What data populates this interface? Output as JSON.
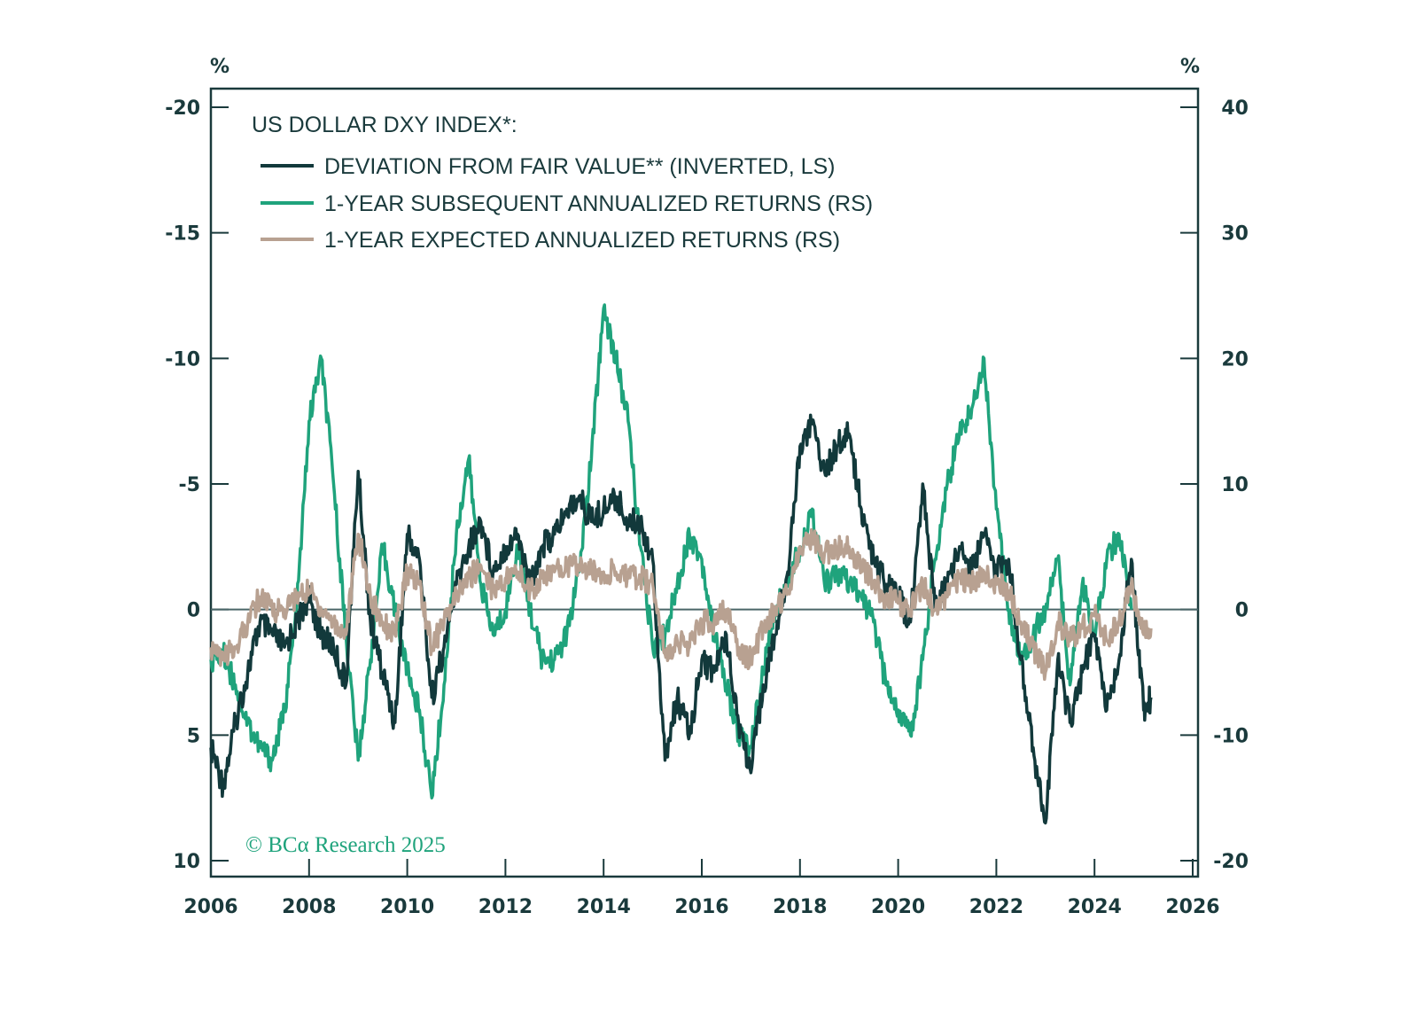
{
  "chart_data": {
    "type": "line",
    "title": "US DOLLAR DXY INDEX*:",
    "left_axis": {
      "unit_label": "%",
      "range": [
        -20,
        10
      ],
      "inverted": true,
      "ticks": [
        -20,
        -15,
        -10,
        -5,
        0,
        5,
        10
      ]
    },
    "right_axis": {
      "unit_label": "%",
      "range": [
        -20,
        40
      ],
      "ticks": [
        40,
        30,
        20,
        10,
        0,
        -10,
        -20
      ]
    },
    "x_axis": {
      "range": [
        2006,
        2026
      ],
      "ticks": [
        2006,
        2008,
        2010,
        2012,
        2014,
        2016,
        2018,
        2020,
        2022,
        2024,
        2026
      ]
    },
    "zero_line": true,
    "legend_position": "top-left",
    "copyright": "© BCα Research 2025",
    "series": [
      {
        "name": "DEVIATION FROM FAIR VALUE** (INVERTED, LS)",
        "axis": "left",
        "color": "#12393b",
        "x": [
          2006.0,
          2006.25,
          2006.5,
          2006.75,
          2007.0,
          2007.25,
          2007.5,
          2007.75,
          2008.0,
          2008.25,
          2008.5,
          2008.75,
          2009.0,
          2009.25,
          2009.5,
          2009.75,
          2010.0,
          2010.25,
          2010.5,
          2010.75,
          2011.0,
          2011.25,
          2011.5,
          2011.75,
          2012.0,
          2012.25,
          2012.5,
          2012.75,
          2013.0,
          2013.25,
          2013.5,
          2013.75,
          2014.0,
          2014.25,
          2014.5,
          2014.75,
          2015.0,
          2015.25,
          2015.5,
          2015.75,
          2016.0,
          2016.25,
          2016.5,
          2016.75,
          2017.0,
          2017.25,
          2017.5,
          2017.75,
          2018.0,
          2018.25,
          2018.5,
          2018.75,
          2019.0,
          2019.25,
          2019.5,
          2019.75,
          2020.0,
          2020.25,
          2020.5,
          2020.75,
          2021.0,
          2021.25,
          2021.5,
          2021.75,
          2022.0,
          2022.25,
          2022.5,
          2022.75,
          2023.0,
          2023.25,
          2023.5,
          2023.75,
          2024.0,
          2024.25,
          2024.5,
          2024.75,
          2025.0,
          2025.15
        ],
        "values": [
          5.5,
          7.0,
          4.5,
          2.5,
          0.5,
          1.0,
          1.5,
          0.5,
          -0.5,
          1.0,
          1.5,
          3.0,
          -5.5,
          0.5,
          2.5,
          4.5,
          -3.0,
          -2.0,
          3.5,
          1.5,
          -1.0,
          -2.5,
          -3.5,
          -1.5,
          -2.5,
          -3.0,
          -1.0,
          -2.5,
          -3.0,
          -4.0,
          -4.5,
          -3.5,
          -4.0,
          -4.5,
          -3.5,
          -3.5,
          -2.0,
          6.0,
          3.5,
          5.0,
          2.0,
          2.5,
          1.0,
          4.5,
          6.5,
          3.0,
          1.0,
          -1.5,
          -6.5,
          -7.5,
          -5.5,
          -6.5,
          -7.0,
          -4.0,
          -2.0,
          -1.0,
          -0.5,
          0.5,
          -5.0,
          0.0,
          -1.0,
          -2.5,
          -1.5,
          -3.0,
          -1.5,
          -2.0,
          2.0,
          5.5,
          8.5,
          2.0,
          4.5,
          2.5,
          1.0,
          4.0,
          2.0,
          -2.0,
          4.0,
          3.5
        ]
      },
      {
        "name": "1-YEAR SUBSEQUENT ANNUALIZED RETURNS (RS)",
        "axis": "right",
        "color": "#1fa37c",
        "x": [
          2006.0,
          2006.25,
          2006.5,
          2006.75,
          2007.0,
          2007.25,
          2007.5,
          2007.75,
          2008.0,
          2008.25,
          2008.5,
          2008.75,
          2009.0,
          2009.25,
          2009.5,
          2009.75,
          2010.0,
          2010.25,
          2010.5,
          2010.75,
          2011.0,
          2011.25,
          2011.5,
          2011.75,
          2012.0,
          2012.25,
          2012.5,
          2012.75,
          2013.0,
          2013.25,
          2013.5,
          2013.75,
          2014.0,
          2014.25,
          2014.5,
          2014.75,
          2015.0,
          2015.25,
          2015.5,
          2015.75,
          2016.0,
          2016.25,
          2016.5,
          2016.75,
          2017.0,
          2017.25,
          2017.5,
          2017.75,
          2018.0,
          2018.25,
          2018.5,
          2018.75,
          2019.0,
          2019.25,
          2019.5,
          2019.75,
          2020.0,
          2020.25,
          2020.5,
          2020.75,
          2021.0,
          2021.25,
          2021.5,
          2021.75,
          2022.0,
          2022.25,
          2022.5,
          2022.75,
          2023.0,
          2023.25,
          2023.5,
          2023.75,
          2024.0,
          2024.25,
          2024.5,
          2024.75
        ],
        "values": [
          -4.0,
          -3.5,
          -6.0,
          -9.0,
          -11.0,
          -12.0,
          -8.0,
          0.0,
          15.0,
          20.0,
          10.0,
          -2.0,
          -12.0,
          -4.0,
          5.0,
          0.0,
          -5.0,
          -8.0,
          -15.0,
          -6.0,
          6.0,
          12.0,
          2.0,
          -2.0,
          0.0,
          5.0,
          0.0,
          -4.0,
          -4.0,
          -2.0,
          3.0,
          12.0,
          24.0,
          20.0,
          15.0,
          5.0,
          -3.0,
          -2.0,
          2.0,
          6.0,
          4.0,
          -2.0,
          -6.0,
          -10.0,
          -11.0,
          -5.0,
          0.0,
          2.0,
          5.0,
          8.0,
          2.0,
          3.0,
          2.0,
          1.0,
          -1.0,
          -6.0,
          -8.0,
          -10.0,
          -4.0,
          4.0,
          10.0,
          14.0,
          16.0,
          20.0,
          8.0,
          0.0,
          -4.0,
          -2.0,
          0.0,
          4.0,
          -6.0,
          2.0,
          -2.0,
          4.0,
          6.0,
          0.0
        ]
      },
      {
        "name": "1-YEAR EXPECTED ANNUALIZED RETURNS (RS)",
        "axis": "right",
        "color": "#b8a191",
        "x": [
          2006.0,
          2006.25,
          2006.5,
          2006.75,
          2007.0,
          2007.25,
          2007.5,
          2007.75,
          2008.0,
          2008.25,
          2008.5,
          2008.75,
          2009.0,
          2009.25,
          2009.5,
          2009.75,
          2010.0,
          2010.25,
          2010.5,
          2010.75,
          2011.0,
          2011.25,
          2011.5,
          2011.75,
          2012.0,
          2012.25,
          2012.5,
          2012.75,
          2013.0,
          2013.25,
          2013.5,
          2013.75,
          2014.0,
          2014.25,
          2014.5,
          2014.75,
          2015.0,
          2015.25,
          2015.5,
          2015.75,
          2016.0,
          2016.25,
          2016.5,
          2016.75,
          2017.0,
          2017.25,
          2017.5,
          2017.75,
          2018.0,
          2018.25,
          2018.5,
          2018.75,
          2019.0,
          2019.25,
          2019.5,
          2019.75,
          2020.0,
          2020.25,
          2020.5,
          2020.75,
          2021.0,
          2021.25,
          2021.5,
          2021.75,
          2022.0,
          2022.25,
          2022.5,
          2022.75,
          2023.0,
          2023.25,
          2023.5,
          2023.75,
          2024.0,
          2024.25,
          2024.5,
          2024.75,
          2025.0,
          2025.15
        ],
        "values": [
          -3.0,
          -4.0,
          -3.0,
          -1.0,
          1.0,
          0.0,
          0.0,
          1.0,
          1.5,
          0.0,
          -1.0,
          -2.0,
          6.0,
          1.0,
          -1.0,
          -2.0,
          3.0,
          2.0,
          -3.0,
          -1.0,
          1.0,
          2.5,
          3.5,
          1.5,
          2.5,
          3.0,
          1.5,
          2.5,
          3.0,
          3.5,
          3.5,
          3.0,
          3.0,
          3.0,
          2.5,
          2.5,
          2.0,
          -3.5,
          -2.5,
          -3.0,
          -1.0,
          -1.0,
          0.0,
          -3.0,
          -4.0,
          -1.5,
          0.0,
          1.5,
          5.0,
          5.5,
          4.5,
          5.0,
          5.0,
          3.5,
          2.0,
          1.0,
          0.5,
          0.0,
          2.0,
          0.0,
          1.0,
          2.5,
          2.0,
          3.0,
          2.0,
          1.5,
          -1.0,
          -3.0,
          -5.0,
          -1.0,
          -2.5,
          -1.5,
          -0.5,
          -2.5,
          -1.0,
          2.0,
          -2.0,
          -1.5
        ]
      }
    ]
  }
}
